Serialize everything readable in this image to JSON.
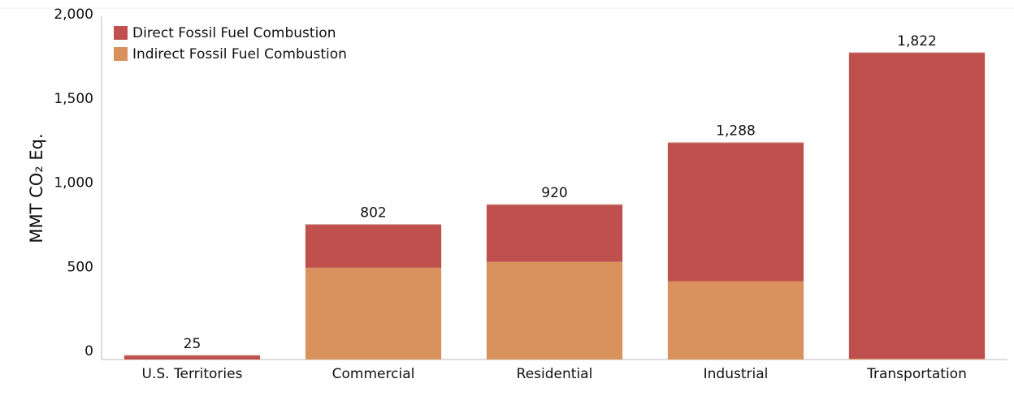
{
  "chart_data": {
    "type": "stacked_bar",
    "y_label": "MMT CO₂ Eq.",
    "categories": [
      "U.S. Territories",
      "Commercial",
      "Residential",
      "Industrial",
      "Transportation"
    ],
    "series": [
      {
        "name": "Indirect Fossil Fuel Combustion",
        "color": "#d9925e",
        "values": [
          0,
          545,
          580,
          465,
          5
        ]
      },
      {
        "name": "Direct Fossil Fuel Combustion",
        "color": "#c0504d",
        "values": [
          25,
          257,
          340,
          823,
          1817
        ]
      }
    ],
    "legend_order": [
      1,
      0
    ],
    "totals": {
      "values": [
        25,
        802,
        920,
        1288,
        1822
      ],
      "value_labels": [
        "25",
        "802",
        "920",
        "1,288",
        "1,822"
      ]
    },
    "ylim": [
      0,
      2000
    ],
    "yticks": [
      0,
      500,
      {
        "value": 1000,
        "label": "1,000"
      },
      {
        "value": 1500,
        "label": "1,500"
      },
      {
        "value": 2000,
        "label": "2,000"
      }
    ],
    "grid": false,
    "legend_position": "top-left"
  }
}
